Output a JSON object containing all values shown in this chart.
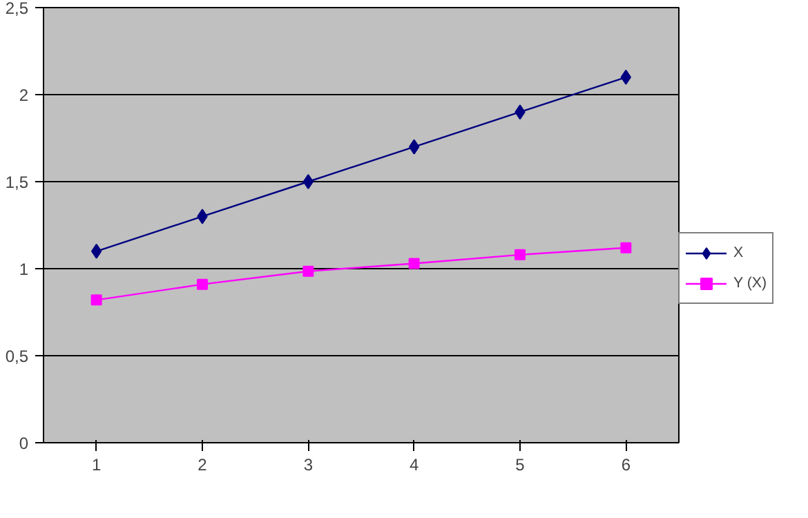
{
  "chart_data": {
    "type": "line",
    "categories": [
      "1",
      "2",
      "3",
      "4",
      "5",
      "6"
    ],
    "series": [
      {
        "name": "X",
        "color": "#000080",
        "marker": "diamond",
        "values": [
          1.1,
          1.3,
          1.5,
          1.7,
          1.9,
          2.1
        ]
      },
      {
        "name": "Y (X)",
        "color": "#ff00ff",
        "marker": "square",
        "values": [
          0.82,
          0.91,
          0.985,
          1.03,
          1.08,
          1.12
        ]
      }
    ],
    "ylim": [
      0,
      2.5
    ],
    "yticks": [
      {
        "value": 0,
        "label": "0"
      },
      {
        "value": 0.5,
        "label": "0,5"
      },
      {
        "value": 1,
        "label": "1"
      },
      {
        "value": 1.5,
        "label": "1,5"
      },
      {
        "value": 2,
        "label": "2"
      },
      {
        "value": 2.5,
        "label": "2,5"
      }
    ],
    "grid": "y",
    "legend": "right",
    "line_style": "solid"
  }
}
